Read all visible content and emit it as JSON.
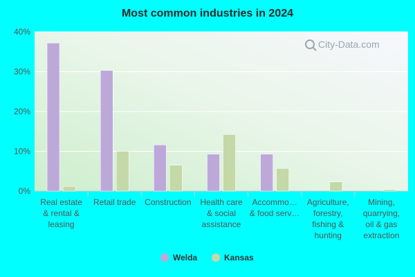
{
  "chart_data": {
    "type": "bar",
    "title": "Most common industries in 2024",
    "xlabel": "",
    "ylabel": "",
    "ylim": [
      0,
      40
    ],
    "yticks": [
      0,
      10,
      20,
      30,
      40
    ],
    "ytick_labels": [
      "0%",
      "10%",
      "20%",
      "30%",
      "40%"
    ],
    "categories": [
      [
        "Real estate",
        "& rental &",
        "leasing"
      ],
      [
        "Retail trade"
      ],
      [
        "Construction"
      ],
      [
        "Health care",
        "& social",
        "assistance"
      ],
      [
        "Accommo…",
        "& food serv…"
      ],
      [
        "Agriculture,",
        "forestry,",
        "fishing &",
        "hunting"
      ],
      [
        "Mining,",
        "quarrying,",
        "oil & gas",
        "extraction"
      ]
    ],
    "series": [
      {
        "name": "Welda",
        "color": "#bda9d9",
        "values": [
          37.2,
          30.3,
          11.6,
          9.3,
          9.3,
          0,
          0
        ]
      },
      {
        "name": "Kansas",
        "color": "#c5d8a7",
        "values": [
          1.2,
          10.0,
          6.5,
          14.2,
          5.7,
          2.3,
          0.4
        ]
      }
    ],
    "legend_position": "bottom-center",
    "grid": true
  },
  "watermark": "City-Data.com"
}
